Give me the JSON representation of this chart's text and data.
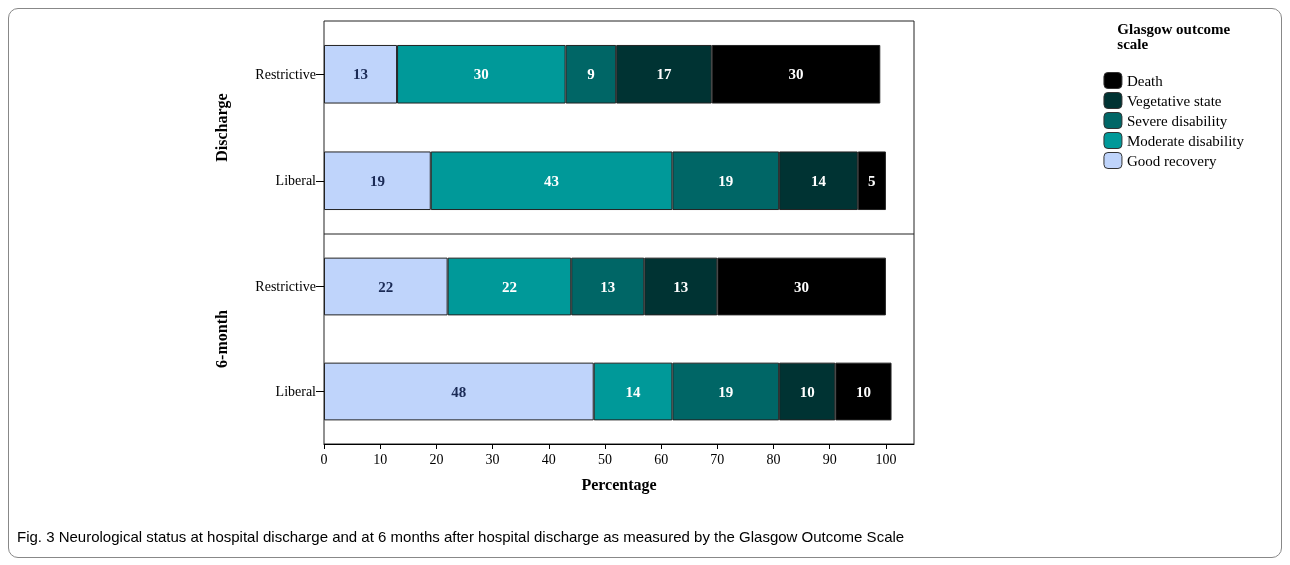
{
  "chart_data": [
    {
      "type": "bar",
      "orientation": "horizontal",
      "stacked": true,
      "ylabel": "Discharge",
      "categories": [
        "Restrictive",
        "Liberal"
      ],
      "xlim": [
        0,
        105
      ],
      "xticks": [
        0,
        10,
        20,
        30,
        40,
        50,
        60,
        70,
        80,
        90,
        100
      ],
      "tick_labels": "y",
      "data_labels": true,
      "grid": false,
      "legend": "right",
      "legend_title": "Glasgow outcome scale",
      "series": [
        {
          "name": "Good recovery",
          "color": "#bfd4fb",
          "values": [
            13,
            19
          ]
        },
        {
          "name": "Moderate disability",
          "color": "#009999",
          "values": [
            30,
            43
          ]
        },
        {
          "name": "Severe disability",
          "color": "#006666",
          "values": [
            9,
            19
          ]
        },
        {
          "name": "Vegetative state",
          "color": "#003333",
          "values": [
            17,
            14
          ]
        },
        {
          "name": "Death",
          "color": "#000000",
          "values": [
            30,
            5
          ]
        }
      ]
    },
    {
      "type": "bar",
      "orientation": "horizontal",
      "stacked": true,
      "ylabel": "6-month",
      "xlabel": "Percentage",
      "categories": [
        "Restrictive",
        "Liberal"
      ],
      "xlim": [
        0,
        105
      ],
      "xticks": [
        0,
        10,
        20,
        30,
        40,
        50,
        60,
        70,
        80,
        90,
        100
      ],
      "data_labels": true,
      "grid": false,
      "annotations": [
        "Fig. 3 Neurological status at hospital discharge and at 6 months after hospital discharge as measured by the Glasgow Outcome Scale"
      ],
      "series": [
        {
          "color": "#bfd4fb",
          "values": [
            22,
            48
          ]
        },
        {
          "color": "#009999",
          "values": [
            22,
            14
          ]
        },
        {
          "color": "#006666",
          "values": [
            13,
            19
          ]
        },
        {
          "color": "#003333",
          "values": [
            13,
            10
          ]
        },
        {
          "color": "#000000",
          "values": [
            30,
            10
          ]
        }
      ]
    }
  ]
}
